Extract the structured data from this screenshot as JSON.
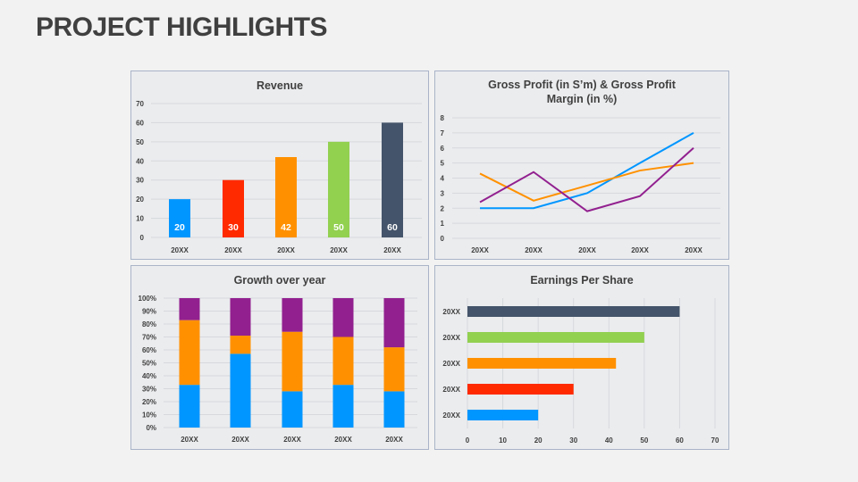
{
  "title": "PROJECT HIGHLIGHTS",
  "colors": {
    "blue": "#0096ff",
    "red": "#ff2a00",
    "orange": "#ff9100",
    "green": "#92d050",
    "dark": "#44546a",
    "purple": "#92208f"
  },
  "chart_data": [
    {
      "type": "bar",
      "title": "Revenue",
      "categories": [
        "20XX",
        "20XX",
        "20XX",
        "20XX",
        "20XX"
      ],
      "values": [
        20,
        30,
        42,
        50,
        60
      ],
      "data_labels": [
        "20",
        "30",
        "42",
        "50",
        "60"
      ],
      "bar_colors": [
        "#0096ff",
        "#ff2a00",
        "#ff9100",
        "#92d050",
        "#44546a"
      ],
      "ylim": [
        0,
        70
      ],
      "yticks": [
        0,
        10,
        20,
        30,
        40,
        50,
        60,
        70
      ],
      "grid": true
    },
    {
      "type": "line",
      "title": "Gross Profit (in S’m) & Gross Profit Margin (in %)",
      "title_lines": [
        "Gross Profit (in S’m) & Gross Profit",
        "Margin (in %)"
      ],
      "categories": [
        "20XX",
        "20XX",
        "20XX",
        "20XX",
        "20XX"
      ],
      "series": [
        {
          "color": "#0096ff",
          "values": [
            2,
            2,
            3,
            5,
            7
          ]
        },
        {
          "color": "#ff9100",
          "values": [
            4.3,
            2.5,
            3.5,
            4.5,
            5
          ]
        },
        {
          "color": "#92208f",
          "values": [
            2.4,
            4.4,
            1.8,
            2.8,
            6
          ]
        }
      ],
      "ylim": [
        0,
        8
      ],
      "yticks": [
        0,
        1,
        2,
        3,
        4,
        5,
        6,
        7,
        8
      ],
      "grid": true
    },
    {
      "type": "bar",
      "stacked": true,
      "percent": true,
      "title": "Growth over year",
      "categories": [
        "20XX",
        "20XX",
        "20XX",
        "20XX",
        "20XX"
      ],
      "series": [
        {
          "color": "#0096ff",
          "values": [
            33,
            57,
            28,
            33,
            28
          ]
        },
        {
          "color": "#ff9100",
          "values": [
            50,
            14,
            46,
            37,
            34
          ]
        },
        {
          "color": "#92208f",
          "values": [
            17,
            29,
            26,
            30,
            38
          ]
        }
      ],
      "ylim": [
        0,
        100
      ],
      "yticks": [
        "0%",
        "10%",
        "20%",
        "30%",
        "40%",
        "50%",
        "60%",
        "70%",
        "80%",
        "90%",
        "100%"
      ],
      "grid": true
    },
    {
      "type": "bar",
      "orientation": "horizontal",
      "title": "Earnings Per Share",
      "categories": [
        "20XX",
        "20XX",
        "20XX",
        "20XX",
        "20XX"
      ],
      "values": [
        60,
        50,
        42,
        30,
        20
      ],
      "bar_colors": [
        "#44546a",
        "#92d050",
        "#ff9100",
        "#ff2a00",
        "#0096ff"
      ],
      "xlim": [
        0,
        70
      ],
      "xticks": [
        0,
        10,
        20,
        30,
        40,
        50,
        60,
        70
      ],
      "grid": true
    }
  ]
}
